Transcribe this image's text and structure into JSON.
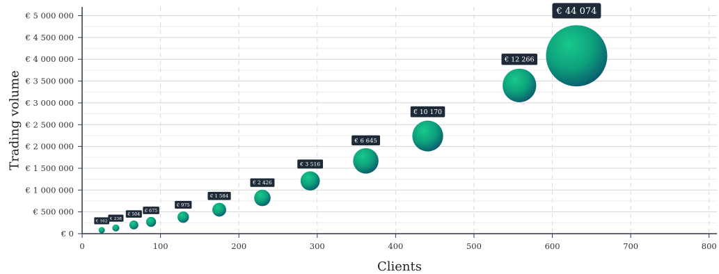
{
  "chart_data": {
    "type": "scatter",
    "xlabel": "Clients",
    "ylabel": "Trading volume",
    "xlim": [
      0,
      810
    ],
    "ylim": [
      0,
      5200000
    ],
    "x_ticks": [
      0,
      100,
      200,
      300,
      400,
      500,
      600,
      700,
      800
    ],
    "x_tick_labels": [
      "0",
      "100",
      "200",
      "300",
      "400",
      "500",
      "600",
      "700",
      "800"
    ],
    "y_ticks": [
      0,
      500000,
      1000000,
      1500000,
      2000000,
      2500000,
      3000000,
      3500000,
      4000000,
      4500000,
      5000000
    ],
    "y_tick_labels": [
      "€ 0",
      "€ 500 000",
      "€ 1 000 000",
      "€ 1 500 000",
      "€ 2 000 000",
      "€ 2 500 000",
      "€ 3 000 000",
      "€ 3 500 000",
      "€ 4 000 000",
      "€ 4 500 000",
      "€ 5 000 000"
    ],
    "grid": true,
    "bubble_colors": {
      "highlight": "#19c98a",
      "mid": "#0da07c",
      "shadow": "#0a5a6c"
    },
    "label_background": "#1e2a38",
    "points": [
      {
        "x": 25,
        "y": 80000,
        "size": 162,
        "label": "€ 162"
      },
      {
        "x": 43,
        "y": 130000,
        "size": 238,
        "label": "€ 238"
      },
      {
        "x": 66,
        "y": 200000,
        "size": 504,
        "label": "€ 504"
      },
      {
        "x": 88,
        "y": 270000,
        "size": 675,
        "label": "€ 675"
      },
      {
        "x": 129,
        "y": 380000,
        "size": 975,
        "label": "€ 975"
      },
      {
        "x": 175,
        "y": 550000,
        "size": 1584,
        "label": "€ 1 584"
      },
      {
        "x": 230,
        "y": 820000,
        "size": 2426,
        "label": "€ 2 426"
      },
      {
        "x": 291,
        "y": 1210000,
        "size": 3516,
        "label": "€ 3 516"
      },
      {
        "x": 362,
        "y": 1670000,
        "size": 6645,
        "label": "€ 6 645"
      },
      {
        "x": 441,
        "y": 2240000,
        "size": 10170,
        "label": "€ 10 170"
      },
      {
        "x": 558,
        "y": 3400000,
        "size": 12266,
        "label": "€ 12 266"
      },
      {
        "x": 631,
        "y": 4080000,
        "size": 44074,
        "label": "€ 44 074"
      }
    ]
  }
}
